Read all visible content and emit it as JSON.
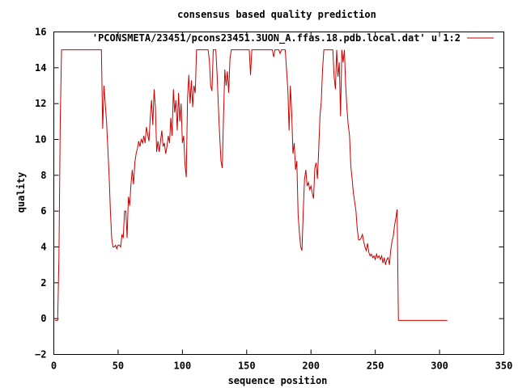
{
  "chart_data": {
    "type": "line",
    "title": "consensus based quality prediction",
    "xlabel": "sequence position",
    "ylabel": "quality",
    "xlim": [
      0,
      350
    ],
    "ylim": [
      -2,
      16
    ],
    "xticks": [
      0,
      50,
      100,
      150,
      200,
      250,
      300,
      350
    ],
    "yticks": [
      -2,
      0,
      2,
      4,
      6,
      8,
      10,
      12,
      14,
      16
    ],
    "grid": false,
    "legend": "top-right",
    "series": [
      {
        "name": "'PCONSMETA/23451/pcons23451.3UON_A.ffas.18.pdb.local.dat' u 1:2",
        "color": "#cc0000",
        "points": [
          [
            1,
            -0.1
          ],
          [
            2,
            -0.1
          ],
          [
            3,
            -0.1
          ],
          [
            4,
            3.5
          ],
          [
            5,
            11
          ],
          [
            6,
            15
          ],
          [
            10,
            15
          ],
          [
            20,
            15
          ],
          [
            30,
            15
          ],
          [
            35,
            15
          ],
          [
            36,
            15
          ],
          [
            37,
            15
          ],
          [
            38,
            10.6
          ],
          [
            39,
            13
          ],
          [
            40,
            12
          ],
          [
            41,
            11
          ],
          [
            42,
            9.5
          ],
          [
            43,
            8
          ],
          [
            44,
            6
          ],
          [
            45,
            4.5
          ],
          [
            46,
            4.0
          ],
          [
            47,
            4.0
          ],
          [
            48,
            4.1
          ],
          [
            49,
            3.9
          ],
          [
            50,
            4.1
          ],
          [
            51,
            4.1
          ],
          [
            52,
            4.0
          ],
          [
            53,
            4.7
          ],
          [
            54,
            4.5
          ],
          [
            55,
            6.0
          ],
          [
            56,
            6.0
          ],
          [
            57,
            4.5
          ],
          [
            58,
            6.8
          ],
          [
            59,
            6.3
          ],
          [
            60,
            7.5
          ],
          [
            61,
            8.3
          ],
          [
            62,
            7.5
          ],
          [
            63,
            8.7
          ],
          [
            64,
            9.2
          ],
          [
            65,
            9.5
          ],
          [
            66,
            9.9
          ],
          [
            67,
            9.6
          ],
          [
            68,
            10.0
          ],
          [
            69,
            9.8
          ],
          [
            70,
            10.2
          ],
          [
            71,
            9.8
          ],
          [
            72,
            10.7
          ],
          [
            73,
            10.3
          ],
          [
            74,
            9.9
          ],
          [
            75,
            11.2
          ],
          [
            76,
            12.2
          ],
          [
            77,
            10.8
          ],
          [
            78,
            12.8
          ],
          [
            79,
            11.8
          ],
          [
            80,
            9.3
          ],
          [
            81,
            9.9
          ],
          [
            82,
            9.3
          ],
          [
            83,
            9.9
          ],
          [
            84,
            10.5
          ],
          [
            85,
            9.6
          ],
          [
            86,
            9.8
          ],
          [
            87,
            9.2
          ],
          [
            88,
            9.6
          ],
          [
            89,
            10.2
          ],
          [
            90,
            9.8
          ],
          [
            91,
            11.2
          ],
          [
            92,
            10.2
          ],
          [
            93,
            12.8
          ],
          [
            94,
            11.5
          ],
          [
            95,
            12.2
          ],
          [
            96,
            10.5
          ],
          [
            97,
            12.6
          ],
          [
            98,
            11.0
          ],
          [
            99,
            12.0
          ],
          [
            100,
            9.8
          ],
          [
            101,
            10.2
          ],
          [
            102,
            8.6
          ],
          [
            103,
            7.9
          ],
          [
            104,
            12.3
          ],
          [
            105,
            13.6
          ],
          [
            106,
            12.0
          ],
          [
            107,
            13.3
          ],
          [
            108,
            11.8
          ],
          [
            109,
            13.0
          ],
          [
            110,
            12.6
          ],
          [
            111,
            15.0
          ],
          [
            112,
            15
          ],
          [
            115,
            15
          ],
          [
            118,
            15
          ],
          [
            120,
            15
          ],
          [
            121,
            14.4
          ],
          [
            122,
            13.0
          ],
          [
            123,
            12.7
          ],
          [
            124,
            15.0
          ],
          [
            125,
            15
          ],
          [
            126,
            15
          ],
          [
            127,
            13.6
          ],
          [
            128,
            11.8
          ],
          [
            129,
            10.2
          ],
          [
            130,
            8.8
          ],
          [
            131,
            8.4
          ],
          [
            132,
            11.3
          ],
          [
            133,
            13.9
          ],
          [
            134,
            13.0
          ],
          [
            135,
            13.8
          ],
          [
            136,
            12.6
          ],
          [
            137,
            14.5
          ],
          [
            138,
            15
          ],
          [
            140,
            15
          ],
          [
            145,
            15
          ],
          [
            148,
            15
          ],
          [
            150,
            15
          ],
          [
            152,
            15
          ],
          [
            153,
            13.6
          ],
          [
            154,
            15
          ],
          [
            155,
            15
          ],
          [
            160,
            15
          ],
          [
            165,
            15
          ],
          [
            168,
            15
          ],
          [
            170,
            15
          ],
          [
            171,
            14.6
          ],
          [
            172,
            15
          ],
          [
            173,
            15
          ],
          [
            175,
            15
          ],
          [
            176,
            14.8
          ],
          [
            177,
            15
          ],
          [
            180,
            15
          ],
          [
            182,
            12.8
          ],
          [
            183,
            10.5
          ],
          [
            184,
            13.0
          ],
          [
            185,
            11.5
          ],
          [
            186,
            9.2
          ],
          [
            187,
            9.8
          ],
          [
            188,
            8.3
          ],
          [
            189,
            8.8
          ],
          [
            190,
            5.8
          ],
          [
            191,
            4.8
          ],
          [
            192,
            4.0
          ],
          [
            193,
            3.8
          ],
          [
            194,
            6.0
          ],
          [
            195,
            7.8
          ],
          [
            196,
            8.3
          ],
          [
            197,
            7.4
          ],
          [
            198,
            7.6
          ],
          [
            199,
            7.2
          ],
          [
            200,
            7.4
          ],
          [
            201,
            7.0
          ],
          [
            202,
            6.7
          ],
          [
            203,
            8.4
          ],
          [
            204,
            8.7
          ],
          [
            205,
            7.8
          ],
          [
            206,
            9.4
          ],
          [
            207,
            11.3
          ],
          [
            208,
            12.1
          ],
          [
            209,
            13.9
          ],
          [
            210,
            15
          ],
          [
            212,
            15
          ],
          [
            215,
            15
          ],
          [
            217,
            15
          ],
          [
            218,
            13.5
          ],
          [
            219,
            12.8
          ],
          [
            220,
            15
          ],
          [
            221,
            13.5
          ],
          [
            222,
            14.3
          ],
          [
            223,
            11.3
          ],
          [
            224,
            15
          ],
          [
            225,
            14.3
          ],
          [
            226,
            15
          ],
          [
            227,
            13.0
          ],
          [
            228,
            11.7
          ],
          [
            229,
            10.8
          ],
          [
            230,
            10.2
          ],
          [
            231,
            8.5
          ],
          [
            232,
            7.8
          ],
          [
            233,
            7.0
          ],
          [
            234,
            6.5
          ],
          [
            235,
            6.0
          ],
          [
            236,
            5.0
          ],
          [
            237,
            4.4
          ],
          [
            238,
            4.4
          ],
          [
            239,
            4.5
          ],
          [
            240,
            4.7
          ],
          [
            241,
            4.3
          ],
          [
            242,
            4.0
          ],
          [
            243,
            3.8
          ],
          [
            244,
            4.2
          ],
          [
            245,
            3.7
          ],
          [
            246,
            3.5
          ],
          [
            247,
            3.6
          ],
          [
            248,
            3.4
          ],
          [
            249,
            3.5
          ],
          [
            250,
            3.3
          ],
          [
            251,
            3.6
          ],
          [
            252,
            3.4
          ],
          [
            253,
            3.5
          ],
          [
            254,
            3.3
          ],
          [
            255,
            3.5
          ],
          [
            256,
            3.1
          ],
          [
            257,
            3.4
          ],
          [
            258,
            3.0
          ],
          [
            259,
            3.3
          ],
          [
            260,
            3.4
          ],
          [
            261,
            3.0
          ],
          [
            262,
            3.8
          ],
          [
            263,
            4.3
          ],
          [
            264,
            4.6
          ],
          [
            265,
            5.2
          ],
          [
            266,
            5.6
          ],
          [
            267,
            6.1
          ],
          [
            268,
            -0.1
          ],
          [
            270,
            -0.1
          ],
          [
            280,
            -0.1
          ],
          [
            290,
            -0.1
          ],
          [
            300,
            -0.1
          ],
          [
            306,
            -0.1
          ]
        ]
      }
    ]
  }
}
